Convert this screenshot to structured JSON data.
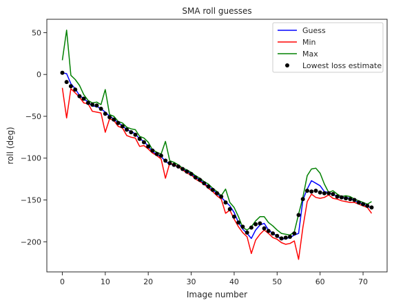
{
  "chart_data": {
    "type": "line",
    "title": "SMA roll guesses",
    "xlabel": "Image number",
    "ylabel": "roll (deg)",
    "xlim": [
      -3.6,
      75.6
    ],
    "ylim": [
      -236,
      66
    ],
    "xticks": [
      0,
      10,
      20,
      30,
      40,
      50,
      60,
      70
    ],
    "yticks": [
      50,
      0,
      -50,
      -100,
      -150,
      -200
    ],
    "grid": false,
    "legend_position": "top-right",
    "series": [
      {
        "name": "Guess",
        "kind": "line",
        "color": "#0000ff",
        "x": [
          0,
          1,
          2,
          3,
          4,
          5,
          6,
          7,
          8,
          9,
          10,
          11,
          12,
          13,
          14,
          15,
          16,
          17,
          18,
          19,
          20,
          21,
          22,
          23,
          24,
          25,
          26,
          27,
          28,
          29,
          30,
          31,
          32,
          33,
          34,
          35,
          36,
          37,
          38,
          39,
          40,
          41,
          42,
          43,
          44,
          45,
          46,
          47,
          48,
          49,
          50,
          51,
          52,
          53,
          54,
          55,
          56,
          57,
          58,
          59,
          60,
          61,
          62,
          63,
          64,
          65,
          66,
          67,
          68,
          69,
          70,
          71,
          72
        ],
        "values": [
          2,
          1,
          -11,
          -17,
          -25,
          -29,
          -33,
          -38,
          -38,
          -41,
          -45,
          -50,
          -53,
          -58,
          -61,
          -66,
          -68,
          -71,
          -77,
          -80,
          -86,
          -92,
          -96,
          -98,
          -104,
          -107,
          -108,
          -111,
          -113,
          -116,
          -118,
          -123,
          -126,
          -130,
          -134,
          -138,
          -142,
          -147,
          -152,
          -157,
          -165,
          -177,
          -185,
          -190,
          -196,
          -186,
          -180,
          -178,
          -186,
          -190,
          -193,
          -197,
          -196,
          -195,
          -192,
          -190,
          -150,
          -137,
          -127,
          -130,
          -133,
          -140,
          -141,
          -144,
          -145,
          -148,
          -147,
          -148,
          -151,
          -153,
          -155,
          -157,
          -160
        ]
      },
      {
        "name": "Min",
        "kind": "line",
        "color": "#ff0000",
        "x": [
          0,
          1,
          2,
          3,
          4,
          5,
          6,
          7,
          8,
          9,
          10,
          11,
          12,
          13,
          14,
          15,
          16,
          17,
          18,
          19,
          20,
          21,
          22,
          23,
          24,
          25,
          26,
          27,
          28,
          29,
          30,
          31,
          32,
          33,
          34,
          35,
          36,
          37,
          38,
          39,
          40,
          41,
          42,
          43,
          44,
          45,
          46,
          47,
          48,
          49,
          50,
          51,
          52,
          53,
          54,
          55,
          56,
          57,
          58,
          59,
          60,
          61,
          62,
          63,
          64,
          65,
          66,
          67,
          68,
          69,
          70,
          71,
          72
        ],
        "values": [
          -16,
          -52,
          -17,
          -22,
          -27,
          -34,
          -35,
          -44,
          -45,
          -46,
          -69,
          -53,
          -55,
          -62,
          -64,
          -73,
          -75,
          -76,
          -86,
          -85,
          -89,
          -94,
          -97,
          -101,
          -124,
          -106,
          -108,
          -110,
          -114,
          -118,
          -120,
          -125,
          -128,
          -131,
          -136,
          -140,
          -145,
          -149,
          -166,
          -162,
          -173,
          -182,
          -189,
          -194,
          -214,
          -198,
          -191,
          -186,
          -190,
          -195,
          -197,
          -201,
          -203,
          -202,
          -199,
          -221,
          -183,
          -152,
          -143,
          -147,
          -148,
          -147,
          -144,
          -148,
          -149,
          -151,
          -152,
          -153,
          -153,
          -155,
          -157,
          -159,
          -166
        ]
      },
      {
        "name": "Max",
        "kind": "line",
        "color": "#008000",
        "x": [
          0,
          1,
          2,
          3,
          4,
          5,
          6,
          7,
          8,
          9,
          10,
          11,
          12,
          13,
          14,
          15,
          16,
          17,
          18,
          19,
          20,
          21,
          22,
          23,
          24,
          25,
          26,
          27,
          28,
          29,
          30,
          31,
          32,
          33,
          34,
          35,
          36,
          37,
          38,
          39,
          40,
          41,
          42,
          43,
          44,
          45,
          46,
          47,
          48,
          49,
          50,
          51,
          52,
          53,
          54,
          55,
          56,
          57,
          58,
          59,
          60,
          61,
          62,
          63,
          64,
          65,
          66,
          67,
          68,
          69,
          70,
          71,
          72
        ],
        "values": [
          17,
          53,
          -1,
          -6,
          -13,
          -24,
          -31,
          -34,
          -33,
          -36,
          -18,
          -48,
          -50,
          -56,
          -58,
          -63,
          -65,
          -66,
          -74,
          -76,
          -81,
          -90,
          -93,
          -95,
          -80,
          -103,
          -105,
          -108,
          -112,
          -114,
          -117,
          -121,
          -124,
          -128,
          -131,
          -136,
          -140,
          -145,
          -137,
          -153,
          -159,
          -170,
          -183,
          -186,
          -182,
          -175,
          -170,
          -170,
          -177,
          -181,
          -186,
          -190,
          -191,
          -192,
          -188,
          -167,
          -147,
          -121,
          -113,
          -112,
          -118,
          -131,
          -141,
          -139,
          -143,
          -146,
          -145,
          -146,
          -149,
          -151,
          -153,
          -155,
          -152
        ]
      },
      {
        "name": "Lowest loss estimate",
        "kind": "scatter",
        "color": "#000000",
        "x": [
          0,
          1,
          2,
          3,
          4,
          5,
          6,
          7,
          8,
          9,
          10,
          11,
          12,
          13,
          14,
          15,
          16,
          17,
          18,
          19,
          20,
          21,
          22,
          23,
          24,
          25,
          26,
          27,
          28,
          29,
          30,
          31,
          32,
          33,
          34,
          35,
          36,
          37,
          38,
          39,
          40,
          41,
          42,
          43,
          44,
          45,
          46,
          47,
          48,
          49,
          50,
          51,
          52,
          53,
          54,
          55,
          56,
          57,
          58,
          59,
          60,
          61,
          62,
          63,
          64,
          65,
          66,
          67,
          68,
          69,
          70,
          71,
          72
        ],
        "values": [
          2,
          -9,
          -14,
          -18,
          -26,
          -29,
          -34,
          -36,
          -37,
          -41,
          -47,
          -51,
          -54,
          -58,
          -62,
          -66,
          -69,
          -72,
          -77,
          -81,
          -86,
          -91,
          -95,
          -97,
          -103,
          -106,
          -108,
          -110,
          -113,
          -116,
          -119,
          -123,
          -126,
          -130,
          -134,
          -138,
          -142,
          -146,
          -153,
          -161,
          -170,
          -177,
          -182,
          -189,
          -183,
          -179,
          -178,
          -184,
          -187,
          -190,
          -193,
          -196,
          -195,
          -194,
          -190,
          -168,
          -149,
          -139,
          -140,
          -139,
          -141,
          -142,
          -142,
          -143,
          -146,
          -147,
          -148,
          -149,
          -150,
          -153,
          -155,
          -157,
          -159
        ]
      }
    ]
  }
}
